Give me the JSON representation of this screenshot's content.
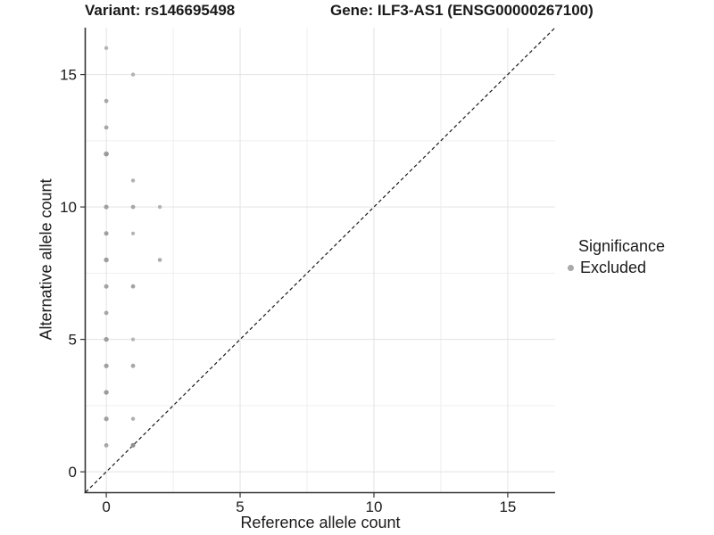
{
  "chart_data": {
    "type": "scatter",
    "title_left": "Variant: rs146695498",
    "title_right": "Gene: ILF3-AS1 (ENSG00000267100)",
    "xlabel": "Reference allele count",
    "ylabel": "Alternative allele count",
    "x_ticks": [
      0,
      5,
      10,
      15
    ],
    "y_ticks": [
      0,
      5,
      10,
      15
    ],
    "xlim": [
      -0.77,
      16.77
    ],
    "ylim": [
      -0.77,
      16.77
    ],
    "grid": {
      "major": true,
      "minor": true
    },
    "identity_line": {
      "slope": 1,
      "intercept": 0,
      "style": "dashed",
      "color": "#1a1a1a"
    },
    "legend": {
      "title": "Significance",
      "position": "right",
      "items": [
        {
          "label": "Excluded",
          "color": "#a9a9a9"
        }
      ]
    },
    "series": [
      {
        "name": "Excluded",
        "points": [
          {
            "x": 0,
            "y": 16,
            "r": 2.2,
            "c": "#b3b3b3"
          },
          {
            "x": 1,
            "y": 15,
            "r": 2.2,
            "c": "#b3b3b3"
          },
          {
            "x": 0,
            "y": 14,
            "r": 2.4,
            "c": "#a7a7a7"
          },
          {
            "x": 0,
            "y": 13,
            "r": 2.4,
            "c": "#a7a7a7"
          },
          {
            "x": 0,
            "y": 12,
            "r": 2.8,
            "c": "#9a9a9a"
          },
          {
            "x": 1,
            "y": 11,
            "r": 2.2,
            "c": "#b0b0b0"
          },
          {
            "x": 0,
            "y": 10,
            "r": 2.6,
            "c": "#a0a0a0"
          },
          {
            "x": 1,
            "y": 10,
            "r": 2.4,
            "c": "#a7a7a7"
          },
          {
            "x": 2,
            "y": 10,
            "r": 2.2,
            "c": "#b3b3b3"
          },
          {
            "x": 0,
            "y": 9,
            "r": 2.5,
            "c": "#a0a0a0"
          },
          {
            "x": 1,
            "y": 9,
            "r": 2.1,
            "c": "#b3b3b3"
          },
          {
            "x": 0,
            "y": 8,
            "r": 2.7,
            "c": "#9c9c9c"
          },
          {
            "x": 2,
            "y": 8,
            "r": 2.3,
            "c": "#ababab"
          },
          {
            "x": 0,
            "y": 7,
            "r": 2.5,
            "c": "#a3a3a3"
          },
          {
            "x": 1,
            "y": 7,
            "r": 2.4,
            "c": "#a3a3a3"
          },
          {
            "x": 0,
            "y": 6,
            "r": 2.4,
            "c": "#a7a7a7"
          },
          {
            "x": 0,
            "y": 5,
            "r": 2.7,
            "c": "#9e9e9e"
          },
          {
            "x": 1,
            "y": 5,
            "r": 2.1,
            "c": "#b5b5b5"
          },
          {
            "x": 0,
            "y": 4,
            "r": 2.6,
            "c": "#a0a0a0"
          },
          {
            "x": 1,
            "y": 4,
            "r": 2.4,
            "c": "#a7a7a7"
          },
          {
            "x": 0,
            "y": 3,
            "r": 2.7,
            "c": "#9c9c9c"
          },
          {
            "x": 0,
            "y": 2,
            "r": 2.6,
            "c": "#a0a0a0"
          },
          {
            "x": 1,
            "y": 2,
            "r": 2.2,
            "c": "#b0b0b0"
          },
          {
            "x": 0,
            "y": 1,
            "r": 2.4,
            "c": "#a7a7a7"
          },
          {
            "x": 1,
            "y": 1,
            "r": 2.5,
            "c": "#8f8f8f"
          }
        ]
      }
    ]
  },
  "colors": {
    "background": "#ffffff",
    "grid_major": "#e3e3e3",
    "grid_minor": "#efefef",
    "axis_line": "#333333",
    "tick_mark": "#333333",
    "text": "#1a1a1a"
  }
}
